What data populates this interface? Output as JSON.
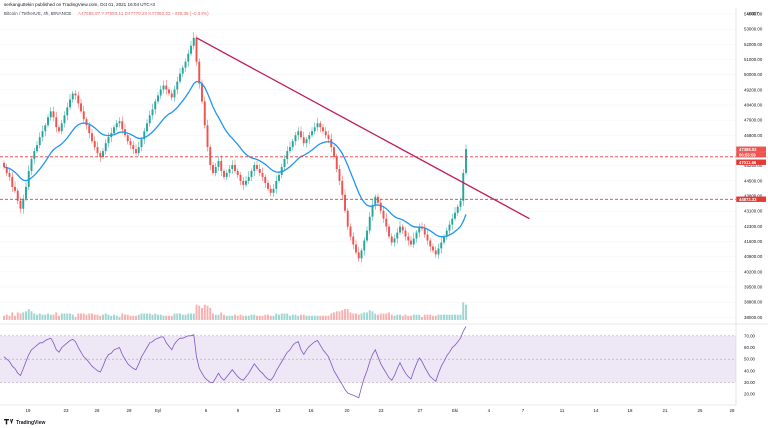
{
  "header": {
    "publisher": "serkanguttekin published on TradingView.com, Oct 01, 2021 16:04 UTC+3",
    "symbol": "Bitcoin / TetherUS, 4h, BINANCE",
    "ohlc": "A47689.97  Y47960.11  D47770.23  K47350.02  −339.35 (−0.64%)",
    "quote": "USDT"
  },
  "footer": {
    "brand": "TradingView"
  },
  "colors": {
    "up": "#26a69a",
    "down": "#ef5350",
    "ema": "#2196f3",
    "trendline": "#c2185b",
    "hline": "#e53935",
    "rsi": "#7e57c2",
    "rsi_band": "#ede7f6"
  },
  "price_axis_labels": [
    "54000.00",
    "53000.00",
    "52000.00",
    "51000.00",
    "50000.00",
    "49200.00",
    "48400.00",
    "47600.00",
    "46800.00",
    "46000.00",
    "45250.00",
    "44500.00",
    "43800.00",
    "43100.00",
    "42300.00",
    "41600.00",
    "40900.00",
    "40200.00",
    "39500.00",
    "38800.00",
    "38000.00"
  ],
  "price_tags": [
    {
      "text": "47388.02",
      "color": "#ef5350"
    },
    {
      "text": "00:55:59",
      "color": "#ef5350"
    },
    {
      "text": "47011.66",
      "color": "#e53935"
    },
    {
      "text": "44872.33",
      "color": "#e53935"
    }
  ],
  "rsi_axis_labels": [
    "70.00",
    "60.00",
    "50.00",
    "40.00",
    "30.00",
    "20.00"
  ],
  "x_axis_labels": [
    "19",
    "23",
    "26",
    "29",
    "Eyl",
    "6",
    "9",
    "13",
    "16",
    "20",
    "23",
    "27",
    "Eki",
    "4",
    "7",
    "11",
    "14",
    "18",
    "21",
    "25",
    "28"
  ],
  "chart_data": {
    "type": "candlestick",
    "title": "Bitcoin / TetherUS, 4h, BINANCE",
    "price_range": [
      38800,
      54300
    ],
    "ema_period": 20,
    "hlines": [
      47011.66,
      44872.33
    ],
    "trendline": {
      "from": {
        "index": 70,
        "price": 53000
      },
      "to": {
        "index": 178,
        "price": 44000
      }
    },
    "closes": [
      46500,
      46200,
      46000,
      45500,
      45300,
      44800,
      44400,
      44900,
      45500,
      46300,
      46900,
      47300,
      47600,
      48000,
      48300,
      48600,
      49000,
      49300,
      49000,
      48500,
      48300,
      48700,
      49100,
      49500,
      49900,
      50200,
      50100,
      49700,
      49300,
      48900,
      48600,
      48200,
      47800,
      47500,
      47200,
      47000,
      47300,
      47700,
      48000,
      48200,
      48500,
      48700,
      48800,
      48400,
      48100,
      47800,
      47600,
      47400,
      47200,
      47500,
      47900,
      48300,
      48700,
      49100,
      49400,
      49800,
      50100,
      50400,
      50600,
      50400,
      50200,
      50000,
      50400,
      50800,
      51200,
      51500,
      51800,
      52200,
      52600,
      53000,
      51800,
      50700,
      49800,
      48600,
      47500,
      46600,
      46200,
      46500,
      46800,
      46300,
      46000,
      46200,
      46400,
      46600,
      46300,
      46100,
      45800,
      45600,
      45800,
      46000,
      46300,
      46600,
      46400,
      46200,
      46000,
      45700,
      45400,
      45200,
      45400,
      45800,
      46100,
      46500,
      46900,
      47300,
      47500,
      47800,
      48100,
      48300,
      48000,
      47700,
      47900,
      48100,
      48300,
      48500,
      48700,
      48500,
      48300,
      48100,
      47900,
      47500,
      47000,
      46400,
      45800,
      45100,
      44300,
      43500,
      43000,
      42600,
      42200,
      41900,
      42300,
      42800,
      43300,
      44000,
      44600,
      45000,
      44700,
      44300,
      43900,
      43500,
      43000,
      42700,
      42900,
      43200,
      43500,
      43300,
      43000,
      42800,
      42600,
      42900,
      43200,
      43500,
      43400,
      43100,
      42800,
      42500,
      42300,
      42100,
      42400,
      42700,
      43000,
      43300,
      43600,
      43900,
      44200,
      44500,
      44800,
      46200,
      47400
    ],
    "rsi": [
      52,
      50,
      48,
      44,
      42,
      38,
      36,
      42,
      48,
      54,
      58,
      60,
      62,
      64,
      64,
      66,
      67,
      68,
      64,
      58,
      56,
      60,
      62,
      64,
      66,
      67,
      65,
      60,
      56,
      52,
      50,
      47,
      44,
      42,
      40,
      39,
      44,
      50,
      54,
      55,
      58,
      59,
      60,
      54,
      50,
      46,
      44,
      42,
      41,
      46,
      52,
      56,
      60,
      64,
      65,
      67,
      68,
      69,
      69,
      64,
      61,
      58,
      63,
      66,
      68,
      68,
      69,
      70,
      70,
      71,
      52,
      42,
      38,
      34,
      32,
      30,
      30,
      34,
      38,
      34,
      32,
      35,
      38,
      41,
      38,
      35,
      33,
      32,
      35,
      38,
      42,
      46,
      43,
      40,
      38,
      35,
      33,
      32,
      35,
      40,
      44,
      48,
      52,
      56,
      58,
      62,
      64,
      65,
      58,
      54,
      58,
      61,
      63,
      65,
      66,
      62,
      58,
      55,
      52,
      46,
      40,
      36,
      32,
      28,
      24,
      21,
      20,
      19,
      18,
      17,
      26,
      34,
      40,
      48,
      54,
      58,
      52,
      46,
      42,
      38,
      34,
      32,
      36,
      42,
      47,
      42,
      38,
      35,
      33,
      40,
      46,
      51,
      48,
      43,
      39,
      35,
      33,
      31,
      38,
      44,
      48,
      53,
      56,
      60,
      62,
      65,
      68,
      74,
      78
    ]
  }
}
